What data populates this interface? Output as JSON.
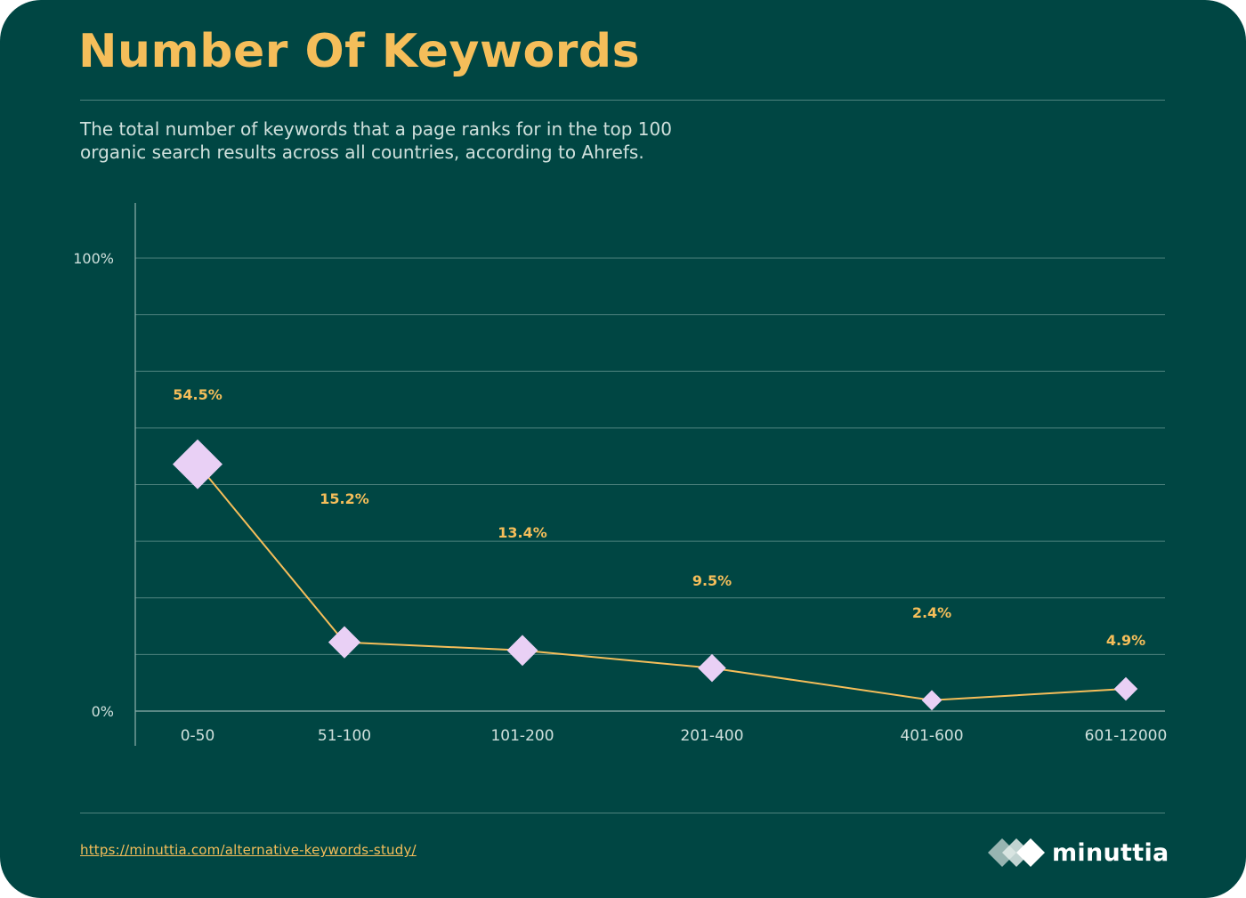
{
  "page": {
    "title": "Number Of Keywords",
    "subtitle_lines": [
      "The total number of keywords that a page ranks for in the top 100",
      "organic search results across all countries, according to Ahrefs."
    ],
    "source_url": "https://minuttia.com/alternative-keywords-study/",
    "brand_name": "minuttia",
    "colors": {
      "background": "#004643",
      "title": "#f5be5a",
      "line": "#f5be5a",
      "marker": "#e9d0f5",
      "grid": "#4e827e",
      "text": "#cfe0dc"
    }
  },
  "chart_data": {
    "type": "line",
    "title": "Number Of Keywords",
    "subtitle": "The total number of keywords that a page ranks for in the top 100 organic search results across all countries, according to Ahrefs.",
    "xlabel": "",
    "ylabel": "",
    "categories": [
      "0-50",
      "51-100",
      "101-200",
      "201-400",
      "401-600",
      "601-12000"
    ],
    "values": [
      54.5,
      15.2,
      13.4,
      9.5,
      2.4,
      4.9
    ],
    "data_labels": [
      "54.5%",
      "15.2%",
      "13.4%",
      "9.5%",
      "2.4%",
      "4.9%"
    ],
    "marker": "diamond",
    "marker_size_scales_with_value": true,
    "ylim": [
      0,
      100
    ],
    "y_tick_labels": [
      "0%",
      "100%"
    ],
    "grid": true,
    "legend": "none"
  }
}
